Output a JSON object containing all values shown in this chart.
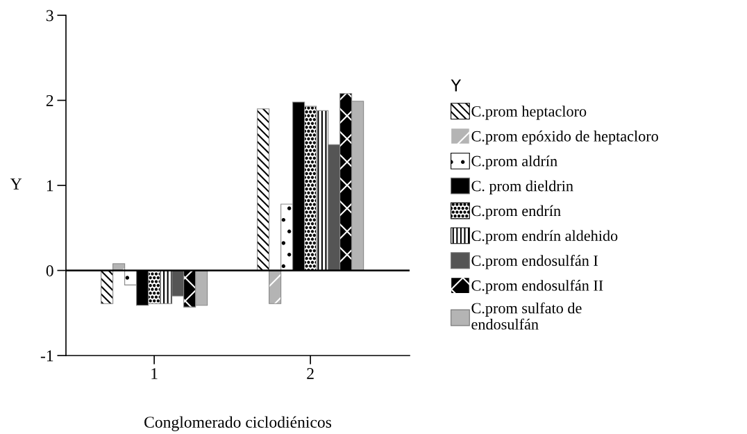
{
  "chart_data": {
    "type": "bar",
    "xlabel": "Conglomerado ciclodiénicos",
    "ylabel": "Y",
    "legend_title": "Y",
    "categories": [
      "1",
      "2"
    ],
    "series": [
      {
        "name": "C.prom heptacloro",
        "color": "#ffffff",
        "values": [
          -0.39,
          1.9
        ]
      },
      {
        "name": "C.prom epóxido de heptacloro",
        "color": "#b4b4b4",
        "values": [
          0.08,
          -0.39
        ]
      },
      {
        "name": "C.prom aldrín",
        "color": "#ffffff",
        "values": [
          -0.17,
          0.78
        ]
      },
      {
        "name": "C. prom dieldrin",
        "color": "#000000",
        "values": [
          -0.41,
          1.98
        ]
      },
      {
        "name": "C.prom endrín",
        "color": "#ffffff",
        "values": [
          -0.39,
          1.93
        ]
      },
      {
        "name": "C.prom endrín aldehido",
        "color": "#ffffff",
        "values": [
          -0.39,
          1.88
        ]
      },
      {
        "name": "C.prom endosulfán I",
        "color": "#555555",
        "values": [
          -0.3,
          1.48
        ]
      },
      {
        "name": "C.prom endosulfán II",
        "color": "#000000",
        "values": [
          -0.43,
          2.08
        ]
      },
      {
        "name": "C.prom sulfato de\nendosulfán",
        "color": "#b4b4b4",
        "values": [
          -0.41,
          1.99
        ]
      }
    ],
    "ylim": [
      -1,
      3
    ],
    "yticks": [
      -1,
      0,
      1,
      2,
      3
    ],
    "grid": false,
    "legend": "right",
    "ref_lines": [
      {
        "axis": "y",
        "value": 0,
        "color": "#000000"
      }
    ]
  }
}
